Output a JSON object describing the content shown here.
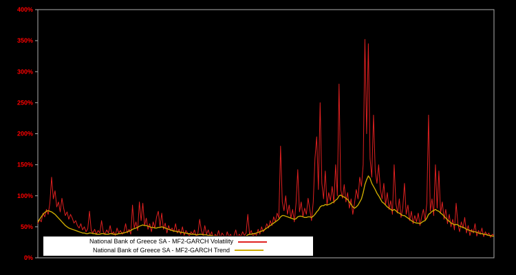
{
  "chart_data": {
    "type": "line",
    "title": "",
    "xlabel": "",
    "ylabel": "",
    "background": "#000000",
    "grid": false,
    "frame_color": "#b0b0b0",
    "tick_label_color": "#ff0000",
    "ylim": [
      0,
      400
    ],
    "yticks": [
      "0%",
      "50%",
      "100%",
      "150%",
      "200%",
      "250%",
      "300%",
      "350%",
      "400%"
    ],
    "ytick_values": [
      0,
      50,
      100,
      150,
      200,
      250,
      300,
      350,
      400
    ],
    "legend_position": "bottom-left",
    "series": [
      {
        "name": "National Bank of Greece SA - MF2-GARCH Volatility",
        "color": "#e02020",
        "width": 1,
        "values": [
          55,
          62,
          58,
          72,
          66,
          78,
          70,
          88,
          130,
          95,
          108,
          82,
          90,
          74,
          96,
          80,
          68,
          74,
          62,
          70,
          64,
          56,
          60,
          52,
          48,
          55,
          45,
          50,
          42,
          47,
          75,
          44,
          40,
          46,
          38,
          44,
          40,
          60,
          42,
          38,
          45,
          40,
          52,
          38,
          42,
          36,
          48,
          40,
          44,
          38,
          42,
          55,
          40,
          46,
          38,
          85,
          48,
          58,
          44,
          90,
          60,
          88,
          52,
          64,
          46,
          55,
          42,
          58,
          48,
          66,
          75,
          50,
          72,
          46,
          56,
          40,
          52,
          44,
          48,
          42,
          55,
          40,
          46,
          38,
          50,
          36,
          44,
          40,
          35,
          42,
          38,
          45,
          34,
          40,
          62,
          44,
          36,
          52,
          38,
          45,
          35,
          42,
          30,
          38,
          34,
          44,
          32,
          40,
          36,
          30,
          42,
          34,
          38,
          30,
          36,
          45,
          32,
          38,
          34,
          42,
          36,
          40,
          70,
          38,
          44,
          34,
          40,
          36,
          46,
          38,
          50,
          42,
          46,
          55,
          48,
          60,
          52,
          66,
          58,
          72,
          64,
          180,
          90,
          76,
          100,
          70,
          85,
          64,
          78,
          58,
          88,
          142,
          74,
          90,
          66,
          80,
          70,
          96,
          78,
          60,
          90,
          160,
          195,
          110,
          250,
          120,
          95,
          140,
          85,
          105,
          92,
          115,
          88,
          150,
          100,
          280,
          110,
          96,
          118,
          90,
          105,
          80,
          95,
          70,
          88,
          110,
          95,
          130,
          115,
          150,
          352,
          200,
          345,
          160,
          130,
          230,
          140,
          120,
          150,
          110,
          95,
          120,
          85,
          105,
          78,
          92,
          70,
          150,
          88,
          72,
          95,
          65,
          80,
          120,
          70,
          85,
          60,
          75,
          55,
          68,
          58,
          72,
          52,
          66,
          78,
          60,
          88,
          230,
          75,
          95,
          68,
          150,
          80,
          140,
          72,
          90,
          62,
          78,
          55,
          70,
          50,
          62,
          45,
          88,
          55,
          42,
          58,
          48,
          65,
          40,
          52,
          36,
          46,
          40,
          55,
          35,
          44,
          38,
          48,
          34,
          42,
          36,
          40,
          33,
          38,
          36
        ]
      },
      {
        "name": "National Bank of Greece SA - MF2-GARCH Trend",
        "color": "#ccaa00",
        "width": 1.4,
        "values": [
          58,
          62,
          66,
          70,
          73,
          75,
          76,
          75,
          74,
          72,
          70,
          67,
          64,
          61,
          58,
          55,
          52,
          50,
          48,
          47,
          46,
          45,
          44,
          43,
          42,
          41,
          40,
          40,
          39,
          39,
          40,
          40,
          39,
          39,
          38,
          38,
          38,
          39,
          39,
          38,
          38,
          38,
          39,
          39,
          38,
          38,
          38,
          39,
          39,
          40,
          40,
          41,
          42,
          43,
          44,
          46,
          47,
          48,
          49,
          51,
          52,
          53,
          52,
          52,
          51,
          50,
          49,
          49,
          48,
          48,
          49,
          49,
          50,
          49,
          48,
          47,
          46,
          45,
          44,
          43,
          43,
          42,
          42,
          41,
          41,
          40,
          40,
          39,
          39,
          38,
          38,
          38,
          37,
          37,
          38,
          38,
          37,
          37,
          37,
          36,
          36,
          36,
          35,
          35,
          35,
          35,
          34,
          34,
          34,
          33,
          33,
          33,
          33,
          32,
          32,
          33,
          33,
          33,
          33,
          34,
          34,
          35,
          37,
          38,
          38,
          39,
          39,
          40,
          41,
          42,
          43,
          44,
          46,
          48,
          50,
          52,
          54,
          56,
          58,
          60,
          62,
          66,
          68,
          68,
          67,
          66,
          65,
          64,
          63,
          62,
          63,
          66,
          67,
          67,
          66,
          65,
          65,
          66,
          66,
          65,
          67,
          70,
          74,
          77,
          82,
          84,
          84,
          86,
          85,
          86,
          87,
          89,
          90,
          93,
          95,
          100,
          101,
          99,
          98,
          96,
          94,
          90,
          86,
          82,
          80,
          82,
          85,
          90,
          95,
          105,
          118,
          126,
          132,
          128,
          120,
          115,
          110,
          104,
          100,
          95,
          90,
          88,
          85,
          82,
          80,
          78,
          76,
          78,
          76,
          73,
          72,
          70,
          68,
          68,
          66,
          64,
          62,
          60,
          58,
          57,
          56,
          56,
          55,
          57,
          59,
          60,
          64,
          70,
          72,
          75,
          76,
          78,
          76,
          75,
          72,
          70,
          67,
          64,
          61,
          59,
          56,
          55,
          53,
          54,
          53,
          51,
          50,
          49,
          48,
          46,
          45,
          44,
          43,
          42,
          42,
          41,
          40,
          39,
          39,
          38,
          38,
          37,
          36,
          36,
          35,
          35
        ]
      }
    ]
  }
}
